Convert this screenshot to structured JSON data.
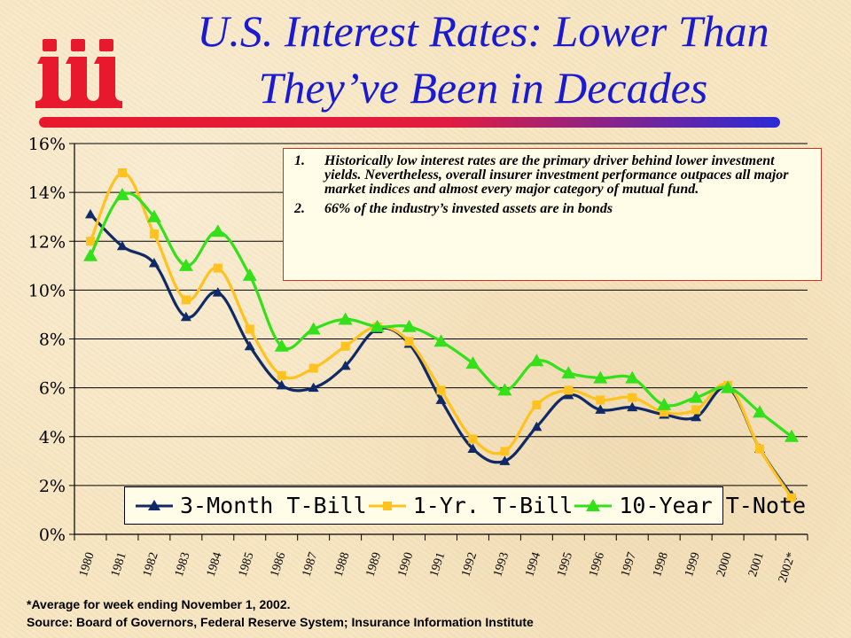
{
  "title": {
    "line1": "U.S. Interest Rates: Lower Than",
    "line2": "They’ve Been in Decades"
  },
  "logo": {
    "text": "iii",
    "color": "#e8192c"
  },
  "colors": {
    "title": "#1a1ad0",
    "bar_start": "#e8192c",
    "bar_end": "#2a2ad8",
    "annotation_border": "#cc3322"
  },
  "annotation": {
    "notes": [
      {
        "number": "1.",
        "text": "Historically low interest rates are the primary driver behind lower investment yields.  Nevertheless, overall insurer investment performance outpaces all major market indices and almost every major category of mutual fund."
      },
      {
        "number": "2.",
        "text": "66% of the industry’s invested assets are in bonds"
      }
    ]
  },
  "footer": {
    "footnote": "*Average for week ending November 1, 2002.",
    "source": "Source:  Board of Governors, Federal Reserve System; Insurance Information Institute"
  },
  "chart_data": {
    "type": "line",
    "x": [
      "1980",
      "1981",
      "1982",
      "1983",
      "1984",
      "1985",
      "1986",
      "1987",
      "1988",
      "1989",
      "1990",
      "1991",
      "1992",
      "1993",
      "1994",
      "1995",
      "1996",
      "1997",
      "1998",
      "1999",
      "2000",
      "2001",
      "2002*"
    ],
    "y_ticks": [
      "0%",
      "2%",
      "4%",
      "6%",
      "8%",
      "10%",
      "12%",
      "14%",
      "16%"
    ],
    "ylim": [
      0,
      16
    ],
    "grid": true,
    "legend_position": "bottom",
    "series": [
      {
        "name": "3-Month T-Bill",
        "color": "#0f2a66",
        "marker": "triangle",
        "values": [
          13.1,
          11.8,
          11.1,
          8.9,
          9.9,
          7.7,
          6.1,
          6.0,
          6.9,
          8.4,
          7.8,
          5.5,
          3.5,
          3.0,
          4.4,
          5.7,
          5.1,
          5.2,
          4.9,
          4.8,
          6.0,
          3.5,
          1.6
        ]
      },
      {
        "name": "1-Yr. T-Bill",
        "color": "#ffc21e",
        "marker": "square",
        "values": [
          12.0,
          14.8,
          12.3,
          9.6,
          10.9,
          8.4,
          6.5,
          6.8,
          7.7,
          8.5,
          7.9,
          5.9,
          3.9,
          3.4,
          5.3,
          5.9,
          5.5,
          5.6,
          5.0,
          5.1,
          6.1,
          3.5,
          1.5
        ]
      },
      {
        "name": "10-Year T-Note",
        "color": "#33e01a",
        "marker": "triangle",
        "values": [
          11.4,
          13.9,
          13.0,
          11.0,
          12.4,
          10.6,
          7.7,
          8.4,
          8.8,
          8.5,
          8.5,
          7.9,
          7.0,
          5.9,
          7.1,
          6.6,
          6.4,
          6.4,
          5.3,
          5.6,
          6.0,
          5.0,
          4.0
        ]
      }
    ]
  }
}
